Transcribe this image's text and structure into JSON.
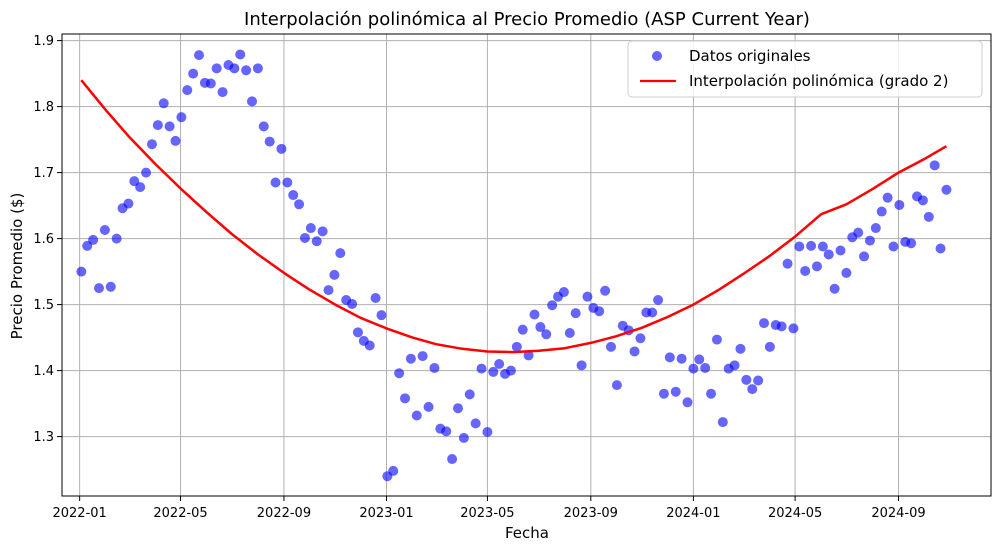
{
  "chart_data": {
    "type": "scatter",
    "title": "Interpolación polinómica al Precio Promedio (ASP Current Year)",
    "xlabel": "Fecha",
    "ylabel": "Precio Promedio ($)",
    "x_ticks": [
      "2022-01",
      "2022-05",
      "2022-09",
      "2023-01",
      "2023-05",
      "2023-09",
      "2024-01",
      "2024-05",
      "2024-09"
    ],
    "x_range": [
      "2021-12-11",
      "2024-12-20"
    ],
    "ylim": [
      1.21,
      1.91
    ],
    "y_ticks": [
      1.3,
      1.4,
      1.5,
      1.6,
      1.7,
      1.8,
      1.9
    ],
    "grid": true,
    "legend_position": "top-right",
    "colors": {
      "scatter": "#0000ff",
      "line": "#ff0000",
      "grid": "#b0b0b0"
    },
    "series": [
      {
        "name": "Datos originales",
        "kind": "scatter",
        "points": [
          [
            "2022-01-03",
            1.55
          ],
          [
            "2022-01-10",
            1.589
          ],
          [
            "2022-01-17",
            1.598
          ],
          [
            "2022-01-24",
            1.525
          ],
          [
            "2022-01-31",
            1.613
          ],
          [
            "2022-02-07",
            1.527
          ],
          [
            "2022-02-14",
            1.6
          ],
          [
            "2022-02-21",
            1.646
          ],
          [
            "2022-02-28",
            1.653
          ],
          [
            "2022-03-07",
            1.687
          ],
          [
            "2022-03-14",
            1.678
          ],
          [
            "2022-03-21",
            1.7
          ],
          [
            "2022-03-28",
            1.743
          ],
          [
            "2022-04-04",
            1.772
          ],
          [
            "2022-04-11",
            1.805
          ],
          [
            "2022-04-18",
            1.77
          ],
          [
            "2022-04-25",
            1.748
          ],
          [
            "2022-05-02",
            1.784
          ],
          [
            "2022-05-09",
            1.825
          ],
          [
            "2022-05-16",
            1.85
          ],
          [
            "2022-05-23",
            1.878
          ],
          [
            "2022-05-30",
            1.836
          ],
          [
            "2022-06-06",
            1.835
          ],
          [
            "2022-06-13",
            1.858
          ],
          [
            "2022-06-20",
            1.822
          ],
          [
            "2022-06-27",
            1.863
          ],
          [
            "2022-07-04",
            1.858
          ],
          [
            "2022-07-11",
            1.879
          ],
          [
            "2022-07-18",
            1.855
          ],
          [
            "2022-07-25",
            1.808
          ],
          [
            "2022-08-01",
            1.858
          ],
          [
            "2022-08-08",
            1.77
          ],
          [
            "2022-08-15",
            1.747
          ],
          [
            "2022-08-22",
            1.685
          ],
          [
            "2022-08-29",
            1.736
          ],
          [
            "2022-09-05",
            1.685
          ],
          [
            "2022-09-12",
            1.666
          ],
          [
            "2022-09-19",
            1.652
          ],
          [
            "2022-09-26",
            1.601
          ],
          [
            "2022-10-03",
            1.616
          ],
          [
            "2022-10-10",
            1.596
          ],
          [
            "2022-10-17",
            1.611
          ],
          [
            "2022-10-24",
            1.522
          ],
          [
            "2022-10-31",
            1.545
          ],
          [
            "2022-11-07",
            1.578
          ],
          [
            "2022-11-14",
            1.507
          ],
          [
            "2022-11-21",
            1.501
          ],
          [
            "2022-11-28",
            1.458
          ],
          [
            "2022-12-05",
            1.445
          ],
          [
            "2022-12-12",
            1.438
          ],
          [
            "2022-12-19",
            1.51
          ],
          [
            "2022-12-26",
            1.484
          ],
          [
            "2023-01-02",
            1.24
          ],
          [
            "2023-01-09",
            1.248
          ],
          [
            "2023-01-16",
            1.396
          ],
          [
            "2023-01-23",
            1.358
          ],
          [
            "2023-01-30",
            1.418
          ],
          [
            "2023-02-06",
            1.332
          ],
          [
            "2023-02-13",
            1.422
          ],
          [
            "2023-02-20",
            1.345
          ],
          [
            "2023-02-27",
            1.404
          ],
          [
            "2023-03-06",
            1.312
          ],
          [
            "2023-03-13",
            1.308
          ],
          [
            "2023-03-20",
            1.266
          ],
          [
            "2023-03-27",
            1.343
          ],
          [
            "2023-04-03",
            1.298
          ],
          [
            "2023-04-10",
            1.364
          ],
          [
            "2023-04-17",
            1.32
          ],
          [
            "2023-04-24",
            1.403
          ],
          [
            "2023-05-01",
            1.307
          ],
          [
            "2023-05-08",
            1.398
          ],
          [
            "2023-05-15",
            1.41
          ],
          [
            "2023-05-22",
            1.395
          ],
          [
            "2023-05-29",
            1.4
          ],
          [
            "2023-06-05",
            1.436
          ],
          [
            "2023-06-12",
            1.462
          ],
          [
            "2023-06-19",
            1.423
          ],
          [
            "2023-06-26",
            1.485
          ],
          [
            "2023-07-03",
            1.466
          ],
          [
            "2023-07-10",
            1.455
          ],
          [
            "2023-07-17",
            1.499
          ],
          [
            "2023-07-24",
            1.512
          ],
          [
            "2023-07-31",
            1.519
          ],
          [
            "2023-08-07",
            1.457
          ],
          [
            "2023-08-14",
            1.487
          ],
          [
            "2023-08-21",
            1.408
          ],
          [
            "2023-08-28",
            1.512
          ],
          [
            "2023-09-04",
            1.495
          ],
          [
            "2023-09-11",
            1.49
          ],
          [
            "2023-09-18",
            1.521
          ],
          [
            "2023-09-25",
            1.436
          ],
          [
            "2023-10-02",
            1.378
          ],
          [
            "2023-10-09",
            1.468
          ],
          [
            "2023-10-16",
            1.461
          ],
          [
            "2023-10-23",
            1.429
          ],
          [
            "2023-10-30",
            1.449
          ],
          [
            "2023-11-06",
            1.488
          ],
          [
            "2023-11-13",
            1.488
          ],
          [
            "2023-11-20",
            1.507
          ],
          [
            "2023-11-27",
            1.365
          ],
          [
            "2023-12-04",
            1.42
          ],
          [
            "2023-12-11",
            1.368
          ],
          [
            "2023-12-18",
            1.418
          ],
          [
            "2023-12-25",
            1.352
          ],
          [
            "2024-01-01",
            1.403
          ],
          [
            "2024-01-08",
            1.417
          ],
          [
            "2024-01-15",
            1.404
          ],
          [
            "2024-01-22",
            1.365
          ],
          [
            "2024-01-29",
            1.447
          ],
          [
            "2024-02-05",
            1.322
          ],
          [
            "2024-02-12",
            1.403
          ],
          [
            "2024-02-19",
            1.408
          ],
          [
            "2024-02-26",
            1.433
          ],
          [
            "2024-03-04",
            1.386
          ],
          [
            "2024-03-11",
            1.372
          ],
          [
            "2024-03-18",
            1.385
          ],
          [
            "2024-03-25",
            1.472
          ],
          [
            "2024-04-01",
            1.436
          ],
          [
            "2024-04-08",
            1.469
          ],
          [
            "2024-04-15",
            1.467
          ],
          [
            "2024-04-22",
            1.562
          ],
          [
            "2024-04-29",
            1.464
          ],
          [
            "2024-05-06",
            1.588
          ],
          [
            "2024-05-13",
            1.551
          ],
          [
            "2024-05-20",
            1.589
          ],
          [
            "2024-05-27",
            1.558
          ],
          [
            "2024-06-03",
            1.588
          ],
          [
            "2024-06-10",
            1.576
          ],
          [
            "2024-06-17",
            1.524
          ],
          [
            "2024-06-24",
            1.582
          ],
          [
            "2024-07-01",
            1.548
          ],
          [
            "2024-07-08",
            1.602
          ],
          [
            "2024-07-15",
            1.609
          ],
          [
            "2024-07-22",
            1.573
          ],
          [
            "2024-07-29",
            1.597
          ],
          [
            "2024-08-05",
            1.616
          ],
          [
            "2024-08-12",
            1.641
          ],
          [
            "2024-08-19",
            1.662
          ],
          [
            "2024-08-26",
            1.588
          ],
          [
            "2024-09-02",
            1.651
          ],
          [
            "2024-09-09",
            1.595
          ],
          [
            "2024-09-16",
            1.593
          ],
          [
            "2024-09-23",
            1.664
          ],
          [
            "2024-09-30",
            1.658
          ],
          [
            "2024-10-07",
            1.633
          ],
          [
            "2024-10-14",
            1.711
          ],
          [
            "2024-10-21",
            1.585
          ],
          [
            "2024-10-28",
            1.674
          ]
        ]
      },
      {
        "name": "Interpolación polinómica (grado 2)",
        "kind": "line",
        "points": [
          [
            "2022-01-03",
            1.84
          ],
          [
            "2022-02-01",
            1.795
          ],
          [
            "2022-03-01",
            1.754
          ],
          [
            "2022-04-01",
            1.713
          ],
          [
            "2022-05-01",
            1.676
          ],
          [
            "2022-06-01",
            1.64
          ],
          [
            "2022-07-01",
            1.607
          ],
          [
            "2022-08-01",
            1.576
          ],
          [
            "2022-09-01",
            1.548
          ],
          [
            "2022-10-01",
            1.523
          ],
          [
            "2022-11-01",
            1.5
          ],
          [
            "2022-12-01",
            1.48
          ],
          [
            "2023-01-01",
            1.464
          ],
          [
            "2023-02-01",
            1.45
          ],
          [
            "2023-03-01",
            1.44
          ],
          [
            "2023-04-01",
            1.433
          ],
          [
            "2023-05-01",
            1.429
          ],
          [
            "2023-06-01",
            1.428
          ],
          [
            "2023-07-01",
            1.43
          ],
          [
            "2023-08-01",
            1.434
          ],
          [
            "2023-09-01",
            1.442
          ],
          [
            "2023-10-01",
            1.452
          ],
          [
            "2023-11-01",
            1.465
          ],
          [
            "2023-12-01",
            1.481
          ],
          [
            "2024-01-01",
            1.5
          ],
          [
            "2024-02-01",
            1.523
          ],
          [
            "2024-03-01",
            1.547
          ],
          [
            "2024-04-01",
            1.574
          ],
          [
            "2024-05-01",
            1.603
          ],
          [
            "2024-06-01",
            1.637
          ],
          [
            "2024-07-01",
            1.652
          ],
          [
            "2024-08-01",
            1.675
          ],
          [
            "2024-09-01",
            1.7
          ],
          [
            "2024-10-01",
            1.72
          ],
          [
            "2024-10-28",
            1.74
          ]
        ]
      }
    ]
  }
}
